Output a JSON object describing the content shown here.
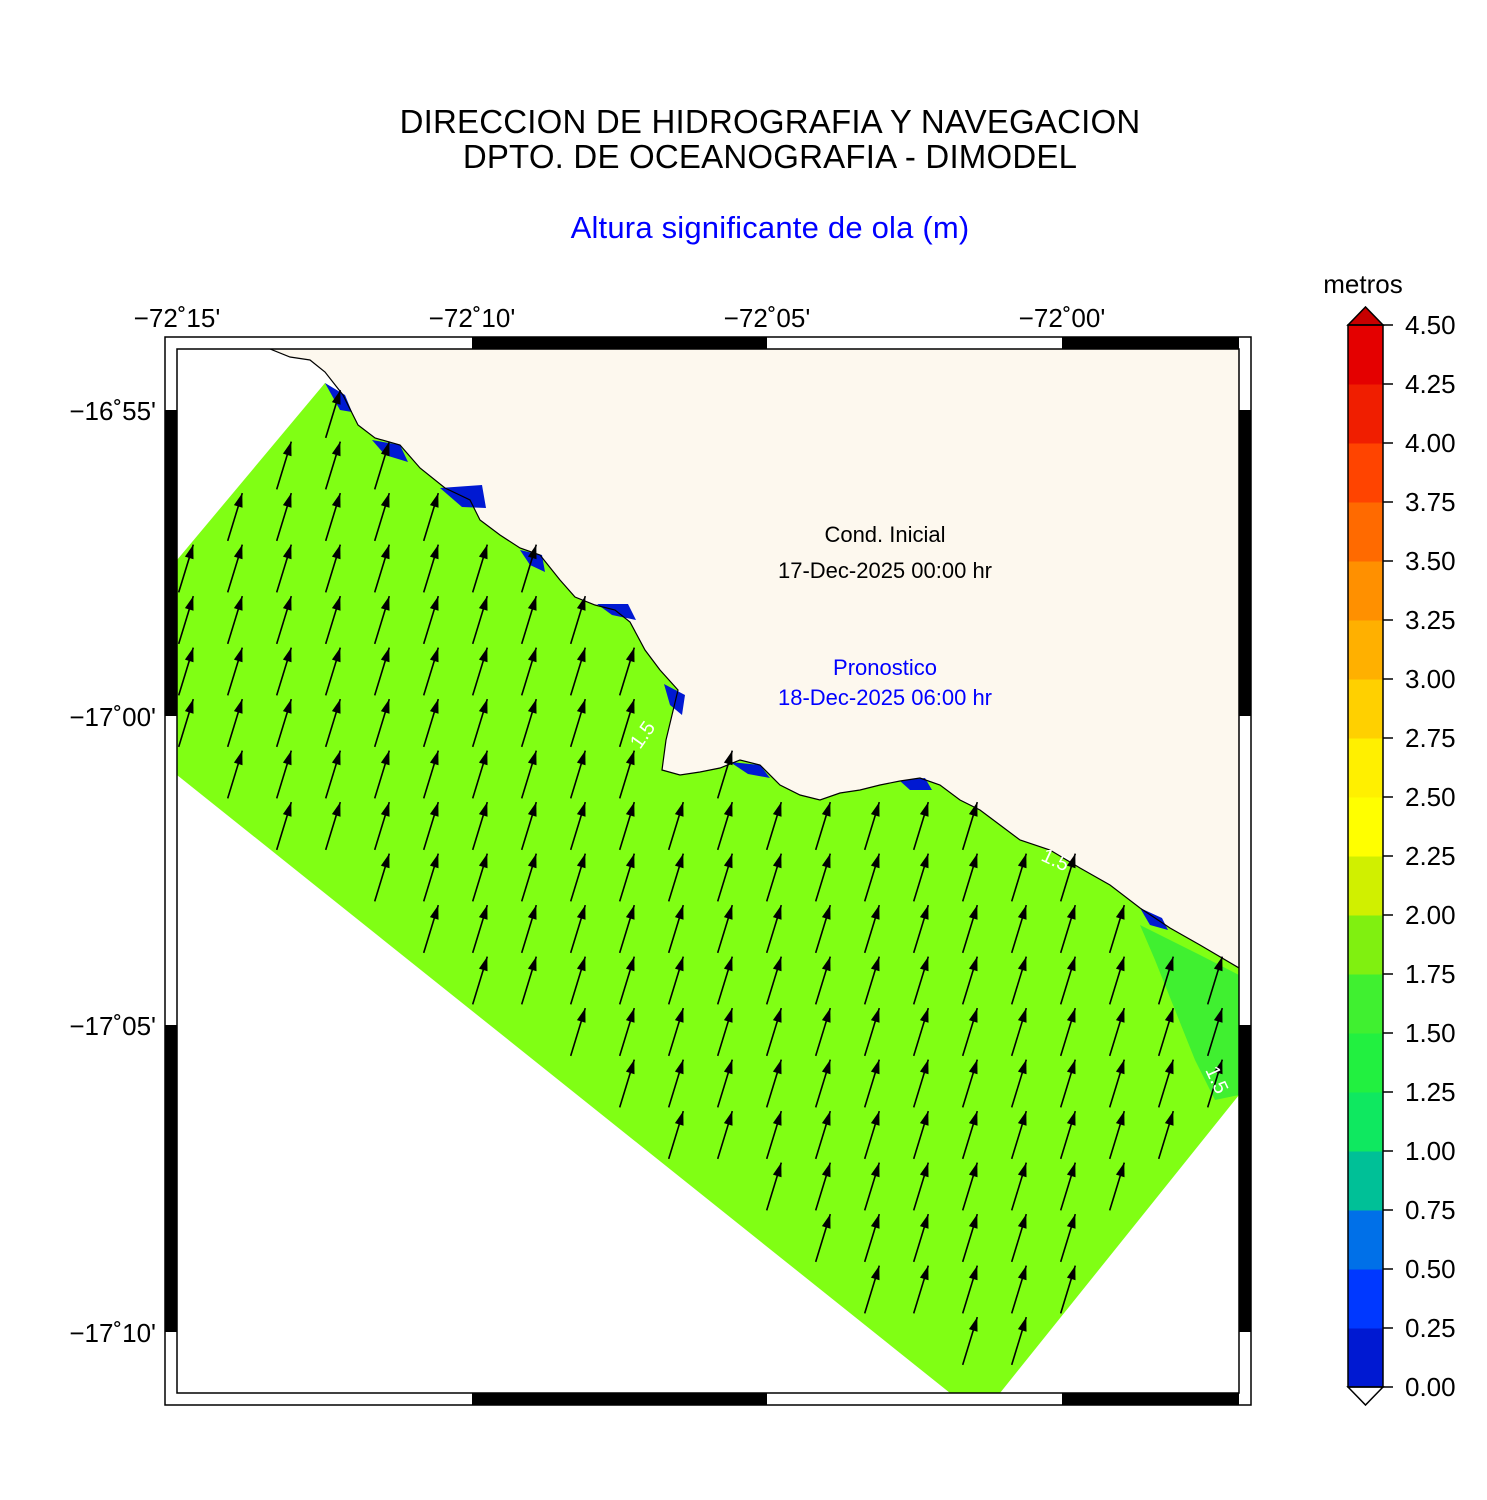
{
  "header": {
    "line1": "DIRECCION DE HIDROGRAFIA Y NAVEGACION",
    "line2": "DPTO. DE OCEANOGRAFIA - DIMODEL",
    "subtitle": "Altura significante de ola (m)"
  },
  "map": {
    "lon_labels": [
      "−72˚15'",
      "−72˚10'",
      "−72˚05'",
      "−72˚00'"
    ],
    "lat_labels": [
      "−16˚55'",
      "−17˚00'",
      "−17˚05'",
      "−17˚10'"
    ],
    "land_color": "#fdf8ee",
    "sea_color": "#80ff14",
    "contour_labels": [
      "1.5",
      "1.5",
      "1.5"
    ]
  },
  "annotations": {
    "initial_label": "Cond. Inicial",
    "initial_time": "17-Dec-2025 00:00 hr",
    "forecast_label": "Pronostico",
    "forecast_time": "18-Dec-2025 06:00 hr"
  },
  "colorbar": {
    "unit": "metros",
    "ticks": [
      "0.00",
      "0.25",
      "0.50",
      "0.75",
      "1.00",
      "1.25",
      "1.50",
      "1.75",
      "2.00",
      "2.25",
      "2.50",
      "2.75",
      "3.00",
      "3.25",
      "3.50",
      "3.75",
      "4.00",
      "4.25",
      "4.50"
    ],
    "colors": [
      "#0019d2",
      "#0038ff",
      "#0070e8",
      "#00c097",
      "#0fe860",
      "#22f040",
      "#40f030",
      "#80f010",
      "#d0f000",
      "#ffff00",
      "#fff000",
      "#ffd000",
      "#ffb000",
      "#ff9000",
      "#ff6a00",
      "#ff4400",
      "#f01e00",
      "#e40000",
      "#c80000"
    ]
  }
}
